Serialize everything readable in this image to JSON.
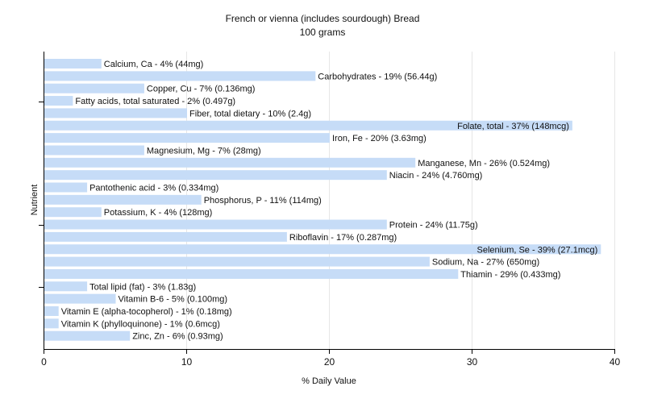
{
  "chart_data": {
    "type": "bar",
    "orientation": "horizontal",
    "title": "French or vienna (includes sourdough) Bread",
    "subtitle": "100 grams",
    "xlabel": "% Daily Value",
    "ylabel": "Nutrient",
    "xlim": [
      0,
      40
    ],
    "x_ticks": [
      0,
      10,
      20,
      30,
      40
    ],
    "grid": true,
    "bar_color": "#c6dcf7",
    "categories": [
      "Calcium, Ca",
      "Carbohydrates",
      "Copper, Cu",
      "Fatty acids, total saturated",
      "Fiber, total dietary",
      "Folate, total",
      "Iron, Fe",
      "Magnesium, Mg",
      "Manganese, Mn",
      "Niacin",
      "Pantothenic acid",
      "Phosphorus, P",
      "Potassium, K",
      "Protein",
      "Riboflavin",
      "Selenium, Se",
      "Sodium, Na",
      "Thiamin",
      "Total lipid (fat)",
      "Vitamin B-6",
      "Vitamin E (alpha-tocopherol)",
      "Vitamin K (phylloquinone)",
      "Zinc, Zn"
    ],
    "values": [
      4,
      19,
      7,
      2,
      10,
      37,
      20,
      7,
      26,
      24,
      3,
      11,
      4,
      24,
      17,
      39,
      27,
      29,
      3,
      5,
      1,
      1,
      6
    ],
    "labels": [
      "Calcium, Ca - 4% (44mg)",
      "Carbohydrates - 19% (56.44g)",
      "Copper, Cu - 7% (0.136mg)",
      "Fatty acids, total saturated - 2% (0.497g)",
      "Fiber, total dietary - 10% (2.4g)",
      "Folate, total - 37% (148mcg)",
      "Iron, Fe - 20% (3.63mg)",
      "Magnesium, Mg - 7% (28mg)",
      "Manganese, Mn - 26% (0.524mg)",
      "Niacin - 24% (4.760mg)",
      "Pantothenic acid - 3% (0.334mg)",
      "Phosphorus, P - 11% (114mg)",
      "Potassium, K - 4% (128mg)",
      "Protein - 24% (11.75g)",
      "Riboflavin - 17% (0.287mg)",
      "Selenium, Se - 39% (27.1mcg)",
      "Sodium, Na - 27% (650mg)",
      "Thiamin - 29% (0.433mg)",
      "Total lipid (fat) - 3% (1.83g)",
      "Vitamin B-6 - 5% (0.100mg)",
      "Vitamin E (alpha-tocopherol) - 1% (0.18mg)",
      "Vitamin K (phylloquinone) - 1% (0.6mcg)",
      "Zinc, Zn - 6% (0.93mg)"
    ]
  }
}
